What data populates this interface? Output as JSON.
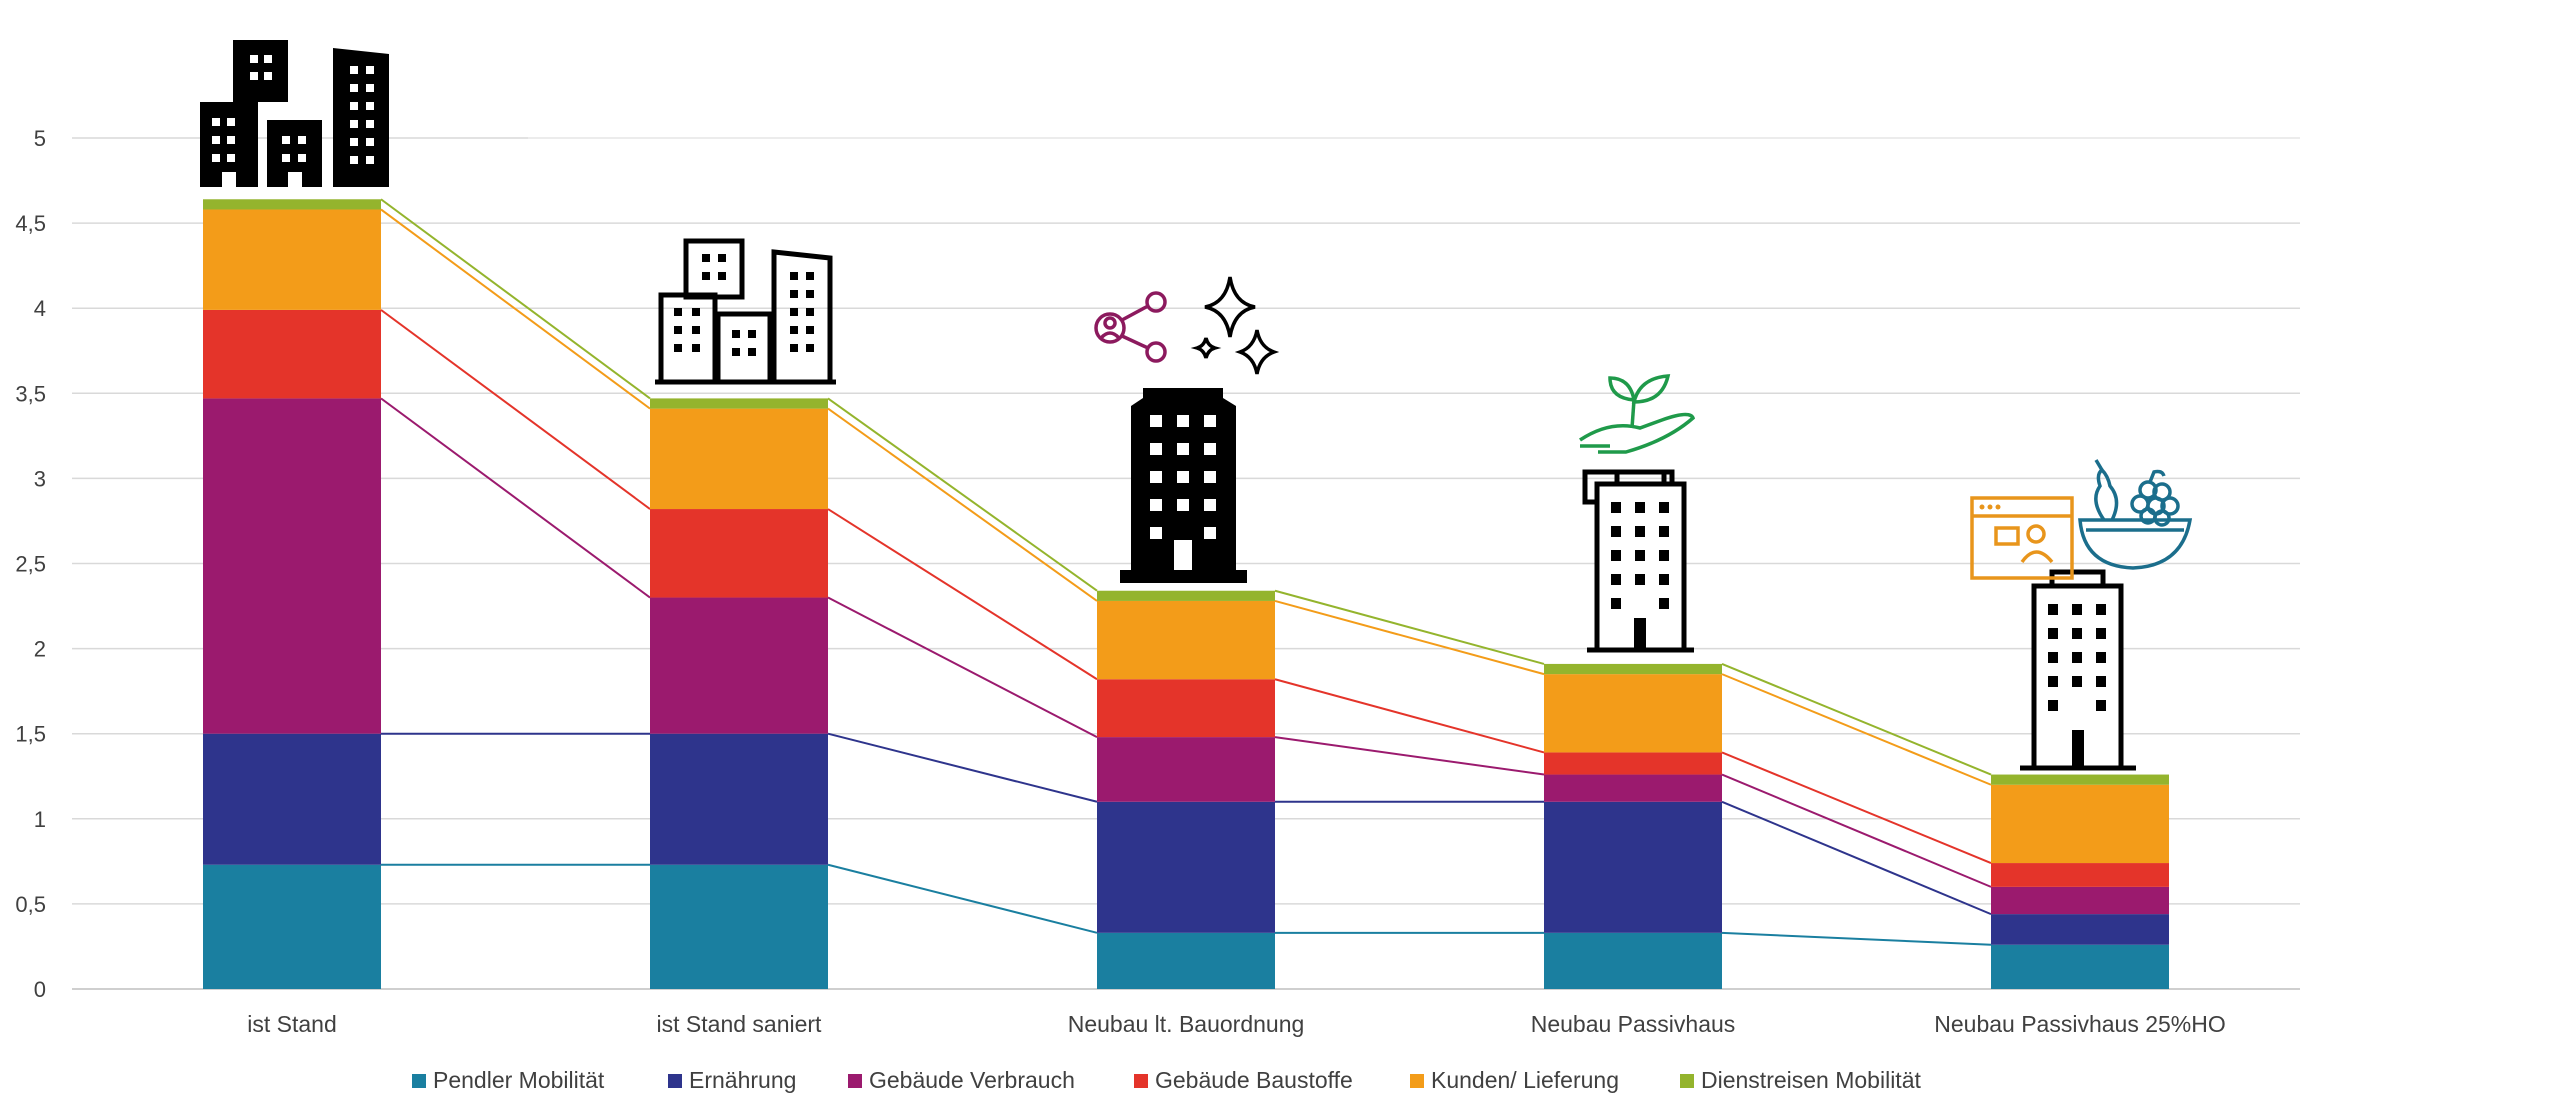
{
  "chart_data": {
    "type": "bar",
    "stacked": true,
    "categories": [
      "ist Stand",
      "ist Stand saniert",
      "Neubau lt. Bauordnung",
      "Neubau Passivhaus",
      "Neubau Passivhaus 25%HO"
    ],
    "series": [
      {
        "name": "Pendler Mobilität",
        "color": "#1a7fa0",
        "values": [
          0.73,
          0.73,
          0.33,
          0.33,
          0.26
        ]
      },
      {
        "name": "Ernährung",
        "color": "#2e348c",
        "values": [
          0.77,
          0.77,
          0.77,
          0.77,
          0.18
        ]
      },
      {
        "name": "Gebäude Verbrauch",
        "color": "#9b1a6e",
        "values": [
          1.97,
          0.8,
          0.38,
          0.16,
          0.16
        ]
      },
      {
        "name": "Gebäude Baustoffe",
        "color": "#e4342a",
        "values": [
          0.52,
          0.52,
          0.34,
          0.13,
          0.14
        ]
      },
      {
        "name": "Kunden/ Lieferung",
        "color": "#f39c19",
        "values": [
          0.59,
          0.59,
          0.46,
          0.46,
          0.46
        ]
      },
      {
        "name": "Dienstreisen Mobilität",
        "color": "#94b42d",
        "values": [
          0.06,
          0.06,
          0.06,
          0.06,
          0.06
        ]
      }
    ],
    "ylim": [
      0,
      5
    ],
    "yticks": [
      "0",
      "0,5",
      "1",
      "1,5",
      "2",
      "2,5",
      "3",
      "3,5",
      "4",
      "4,5",
      "5"
    ],
    "grid": true,
    "legend": "bottom",
    "icons": [
      "city-buildings-solid-icon",
      "city-buildings-outline-icon",
      "tower-share-sparkle-icon",
      "tower-plant-hand-icon",
      "tower-video-call-fruit-bowl-icon"
    ]
  }
}
